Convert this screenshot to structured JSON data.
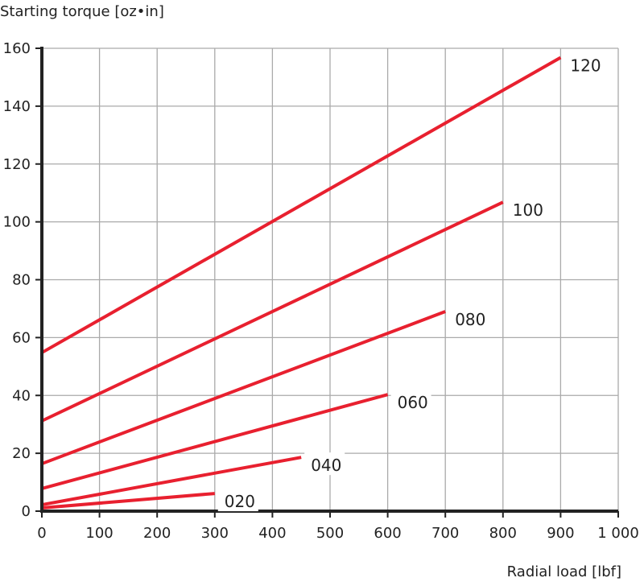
{
  "chart_data": {
    "type": "line",
    "ylabel": "Starting torque [oz•in]",
    "xlabel": "Radial load [lbf]",
    "xlim": [
      0,
      1000
    ],
    "ylim": [
      0,
      160
    ],
    "xticks": [
      0,
      100,
      200,
      300,
      400,
      500,
      600,
      700,
      800,
      900,
      1000
    ],
    "xtick_labels": [
      "0",
      "100",
      "200",
      "300",
      "400",
      "500",
      "600",
      "700",
      "800",
      "900",
      "1 000"
    ],
    "yticks": [
      0,
      20,
      40,
      60,
      80,
      100,
      120,
      140,
      160
    ],
    "ytick_labels": [
      "0",
      "20",
      "40",
      "60",
      "80",
      "100",
      "120",
      "140",
      "160"
    ],
    "grid": true,
    "line_color": "#e8202f",
    "series": [
      {
        "name": "020",
        "x": [
          0,
          300
        ],
        "y": [
          1.1,
          6.1
        ]
      },
      {
        "name": "040",
        "x": [
          0,
          450
        ],
        "y": [
          2.2,
          18.6
        ]
      },
      {
        "name": "060",
        "x": [
          0,
          600
        ],
        "y": [
          7.8,
          40.3
        ]
      },
      {
        "name": "080",
        "x": [
          0,
          700
        ],
        "y": [
          16.4,
          69
        ]
      },
      {
        "name": "100",
        "x": [
          0,
          800
        ],
        "y": [
          31.2,
          106.8
        ]
      },
      {
        "name": "120",
        "x": [
          0,
          900
        ],
        "y": [
          54.8,
          156.8
        ]
      }
    ]
  }
}
